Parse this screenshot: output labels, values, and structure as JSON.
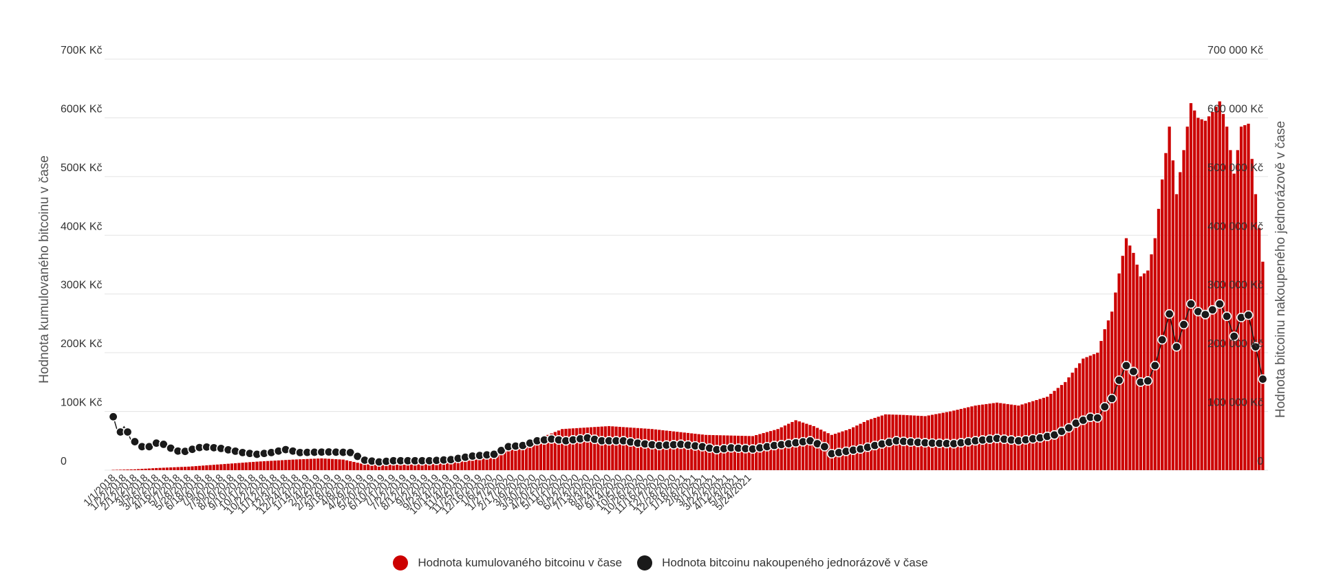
{
  "chart_data": {
    "type": "bar",
    "colors": {
      "bars": "#cc0000",
      "line": "#1a1a1a"
    },
    "y_left": {
      "label": "Hodnota kumulovaného bitcoinu v čase",
      "ticks": [
        "0",
        "100K Kč",
        "200K Kč",
        "300K Kč",
        "400K Kč",
        "500K Kč",
        "600K Kč",
        "700K Kč"
      ],
      "range": [
        0,
        700000
      ]
    },
    "y_right": {
      "label": "Hodnota bitcoinu nakoupeného jednorázově v čase",
      "ticks": [
        "0",
        "100 000 Kč",
        "200 000 Kč",
        "300 000 Kč",
        "400 000 Kč",
        "500 000 Kč",
        "600 000 Kč",
        "700 000 Kč"
      ],
      "range": [
        0,
        700000
      ]
    },
    "x_tick_labels": [
      "1/1/2018",
      "1/22/2018",
      "2/12/2018",
      "3/5/2018",
      "3/26/2018",
      "4/16/2018",
      "5/7/2018",
      "5/28/2018",
      "6/18/2018",
      "7/9/2018",
      "7/30/2018",
      "8/20/2018",
      "9/10/2018",
      "10/1/2018",
      "10/22/2018",
      "11/12/2018",
      "12/3/2018",
      "12/24/2018",
      "1/14/2019",
      "2/4/2019",
      "2/25/2019",
      "3/18/2019",
      "4/8/2019",
      "4/29/2019",
      "5/20/2019",
      "6/10/2019",
      "7/1/2019",
      "7/22/2019",
      "8/12/2019",
      "9/2/2019",
      "9/23/2019",
      "10/14/2019",
      "11/4/2019",
      "11/25/2019",
      "12/16/2019",
      "1/6/2020",
      "1/27/2020",
      "2/17/2020",
      "3/9/2020",
      "3/30/2020",
      "4/20/2020",
      "5/11/2020",
      "6/1/2020",
      "6/22/2020",
      "7/13/2020",
      "8/3/2020",
      "8/24/2020",
      "9/14/2020",
      "10/5/2020",
      "10/26/2020",
      "11/16/2020",
      "12/7/2020",
      "12/28/2020",
      "1/18/2021",
      "2/8/2021",
      "3/1/2021",
      "3/22/2021",
      "4/12/2021",
      "5/3/2021",
      "5/24/2021"
    ],
    "x_tick_step_weeks": 3,
    "start_date": "1/1/2018",
    "series": [
      {
        "name": "Hodnota kumulovaného bitcoinu v čase",
        "type": "bar",
        "anchors": [
          [
            0,
            500
          ],
          [
            6,
            1400
          ],
          [
            12,
            3600
          ],
          [
            21,
            6000
          ],
          [
            30,
            10000
          ],
          [
            40,
            14500
          ],
          [
            50,
            18000
          ],
          [
            58,
            20000
          ],
          [
            64,
            18000
          ],
          [
            70,
            10000
          ],
          [
            80,
            9000
          ],
          [
            90,
            11000
          ],
          [
            96,
            14000
          ],
          [
            101,
            18000
          ],
          [
            108,
            30000
          ],
          [
            115,
            45000
          ],
          [
            125,
            70000
          ],
          [
            138,
            75000
          ],
          [
            150,
            70000
          ],
          [
            165,
            60000
          ],
          [
            178,
            58000
          ],
          [
            185,
            70000
          ],
          [
            190,
            85000
          ],
          [
            195,
            75000
          ],
          [
            200,
            60000
          ],
          [
            205,
            70000
          ],
          [
            210,
            85000
          ],
          [
            215,
            95000
          ],
          [
            220,
            94000
          ],
          [
            226,
            92000
          ],
          [
            233,
            100000
          ],
          [
            240,
            110000
          ],
          [
            246,
            115000
          ],
          [
            252,
            110000
          ],
          [
            260,
            125000
          ],
          [
            265,
            150000
          ],
          [
            270,
            190000
          ],
          [
            272,
            195000
          ],
          [
            274,
            200000
          ],
          [
            276,
            240000
          ],
          [
            278,
            270000
          ],
          [
            280,
            335000
          ],
          [
            282,
            395000
          ],
          [
            284,
            370000
          ],
          [
            286,
            330000
          ],
          [
            288,
            340000
          ],
          [
            290,
            395000
          ],
          [
            292,
            495000
          ],
          [
            294,
            585000
          ],
          [
            296,
            470000
          ],
          [
            298,
            545000
          ],
          [
            300,
            625000
          ],
          [
            302,
            600000
          ],
          [
            304,
            595000
          ],
          [
            306,
            610000
          ],
          [
            308,
            628000
          ],
          [
            310,
            585000
          ],
          [
            312,
            505000
          ],
          [
            314,
            585000
          ],
          [
            316,
            590000
          ],
          [
            318,
            470000
          ],
          [
            320,
            355000
          ]
        ]
      },
      {
        "name": "Hodnota bitcoinu nakoupeného jednorázově v čase",
        "type": "line",
        "anchors": [
          [
            0,
            91000
          ],
          [
            1,
            70000
          ],
          [
            2,
            65000
          ],
          [
            3,
            74000
          ],
          [
            4,
            65000
          ],
          [
            5,
            50000
          ],
          [
            7,
            47000
          ],
          [
            8,
            40000
          ],
          [
            9,
            36000
          ],
          [
            11,
            44000
          ],
          [
            13,
            48000
          ],
          [
            15,
            40000
          ],
          [
            17,
            35000
          ],
          [
            19,
            30000
          ],
          [
            21,
            34000
          ],
          [
            25,
            40000
          ],
          [
            30,
            37000
          ],
          [
            36,
            30000
          ],
          [
            40,
            27000
          ],
          [
            44,
            30000
          ],
          [
            48,
            35000
          ],
          [
            52,
            30000
          ],
          [
            60,
            31000
          ],
          [
            66,
            30000
          ],
          [
            70,
            17000
          ],
          [
            74,
            14000
          ],
          [
            78,
            16000
          ],
          [
            84,
            16000
          ],
          [
            88,
            16000
          ],
          [
            94,
            18000
          ],
          [
            100,
            24000
          ],
          [
            106,
            27000
          ],
          [
            110,
            40000
          ],
          [
            114,
            42000
          ],
          [
            118,
            50000
          ],
          [
            122,
            53000
          ],
          [
            126,
            50000
          ],
          [
            132,
            55000
          ],
          [
            136,
            50000
          ],
          [
            142,
            50000
          ],
          [
            146,
            46000
          ],
          [
            152,
            42000
          ],
          [
            158,
            44000
          ],
          [
            164,
            40000
          ],
          [
            168,
            35000
          ],
          [
            172,
            38000
          ],
          [
            178,
            36000
          ],
          [
            184,
            42000
          ],
          [
            188,
            45000
          ],
          [
            194,
            50000
          ],
          [
            198,
            40000
          ],
          [
            200,
            28000
          ],
          [
            202,
            30000
          ],
          [
            208,
            36000
          ],
          [
            212,
            42000
          ],
          [
            218,
            50000
          ],
          [
            222,
            48000
          ],
          [
            228,
            46000
          ],
          [
            234,
            45000
          ],
          [
            240,
            50000
          ],
          [
            246,
            54000
          ],
          [
            252,
            50000
          ],
          [
            258,
            55000
          ],
          [
            262,
            60000
          ],
          [
            266,
            72000
          ],
          [
            268,
            80000
          ],
          [
            270,
            85000
          ],
          [
            272,
            90000
          ],
          [
            274,
            89000
          ],
          [
            276,
            108000
          ],
          [
            278,
            122000
          ],
          [
            280,
            153000
          ],
          [
            282,
            178000
          ],
          [
            284,
            168000
          ],
          [
            286,
            150000
          ],
          [
            288,
            152000
          ],
          [
            290,
            178000
          ],
          [
            292,
            222000
          ],
          [
            294,
            266000
          ],
          [
            296,
            210000
          ],
          [
            298,
            248000
          ],
          [
            300,
            283000
          ],
          [
            302,
            270000
          ],
          [
            304,
            265000
          ],
          [
            306,
            273000
          ],
          [
            308,
            283000
          ],
          [
            310,
            262000
          ],
          [
            312,
            228000
          ],
          [
            314,
            260000
          ],
          [
            316,
            264000
          ],
          [
            318,
            210000
          ],
          [
            320,
            155000
          ]
        ]
      }
    ],
    "grid": true,
    "legend": "bottom-center"
  },
  "legend": {
    "items": [
      {
        "label": "Hodnota kumulovaného bitcoinu v čase",
        "color": "#cc0000"
      },
      {
        "label": "Hodnota bitcoinu nakoupeného jednorázově v čase",
        "color": "#1a1a1a"
      }
    ]
  }
}
